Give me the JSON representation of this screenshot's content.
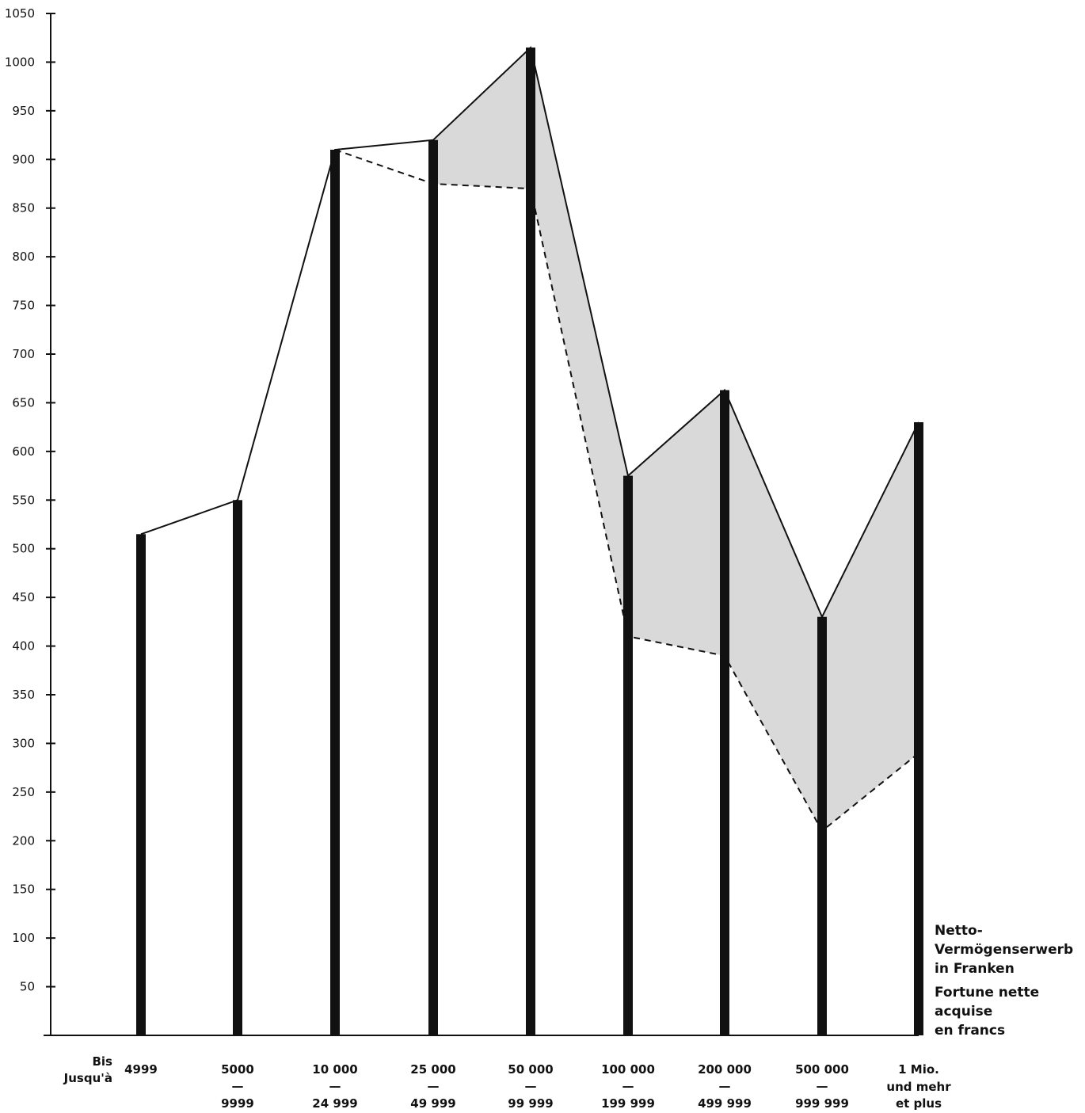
{
  "chart_data": {
    "type": "line",
    "title": "",
    "y_ticks": [
      50,
      100,
      150,
      200,
      250,
      300,
      350,
      400,
      450,
      500,
      550,
      600,
      650,
      700,
      750,
      800,
      850,
      900,
      950,
      1000,
      1050
    ],
    "ylim": [
      0,
      1050
    ],
    "categories": [
      {
        "top": "4999",
        "bottom": ""
      },
      {
        "top": "5000",
        "bottom": "9999"
      },
      {
        "top": "10 000",
        "bottom": "24 999"
      },
      {
        "top": "25 000",
        "bottom": "49 999"
      },
      {
        "top": "50 000",
        "bottom": "99 999"
      },
      {
        "top": "100 000",
        "bottom": "199 999"
      },
      {
        "top": "200 000",
        "bottom": "499 999"
      },
      {
        "top": "500 000",
        "bottom": "999 999"
      },
      {
        "top": "1 Mio.",
        "bottom": "und mehr",
        "bottom2": "et plus"
      }
    ],
    "first_category_prefix": [
      "Bis",
      "Jusqu'à"
    ],
    "separator": "—",
    "series": [
      {
        "style": "solid",
        "values": [
          515,
          550,
          910,
          920,
          1015,
          575,
          663,
          430,
          630
        ]
      },
      {
        "style": "dashed",
        "values": [
          null,
          null,
          910,
          875,
          870,
          410,
          390,
          210,
          290
        ]
      }
    ],
    "shaded_gap_from_category_index": 3,
    "grid": false,
    "colors": {
      "line": "#111111",
      "fill": "#d9d9d9",
      "background": "#ffffff"
    },
    "xlabel": [
      "Netto-",
      "Vermögenserwerb",
      "in Franken"
    ],
    "xlabel_fr": [
      "Fortune nette",
      "acquise",
      "en francs"
    ]
  }
}
